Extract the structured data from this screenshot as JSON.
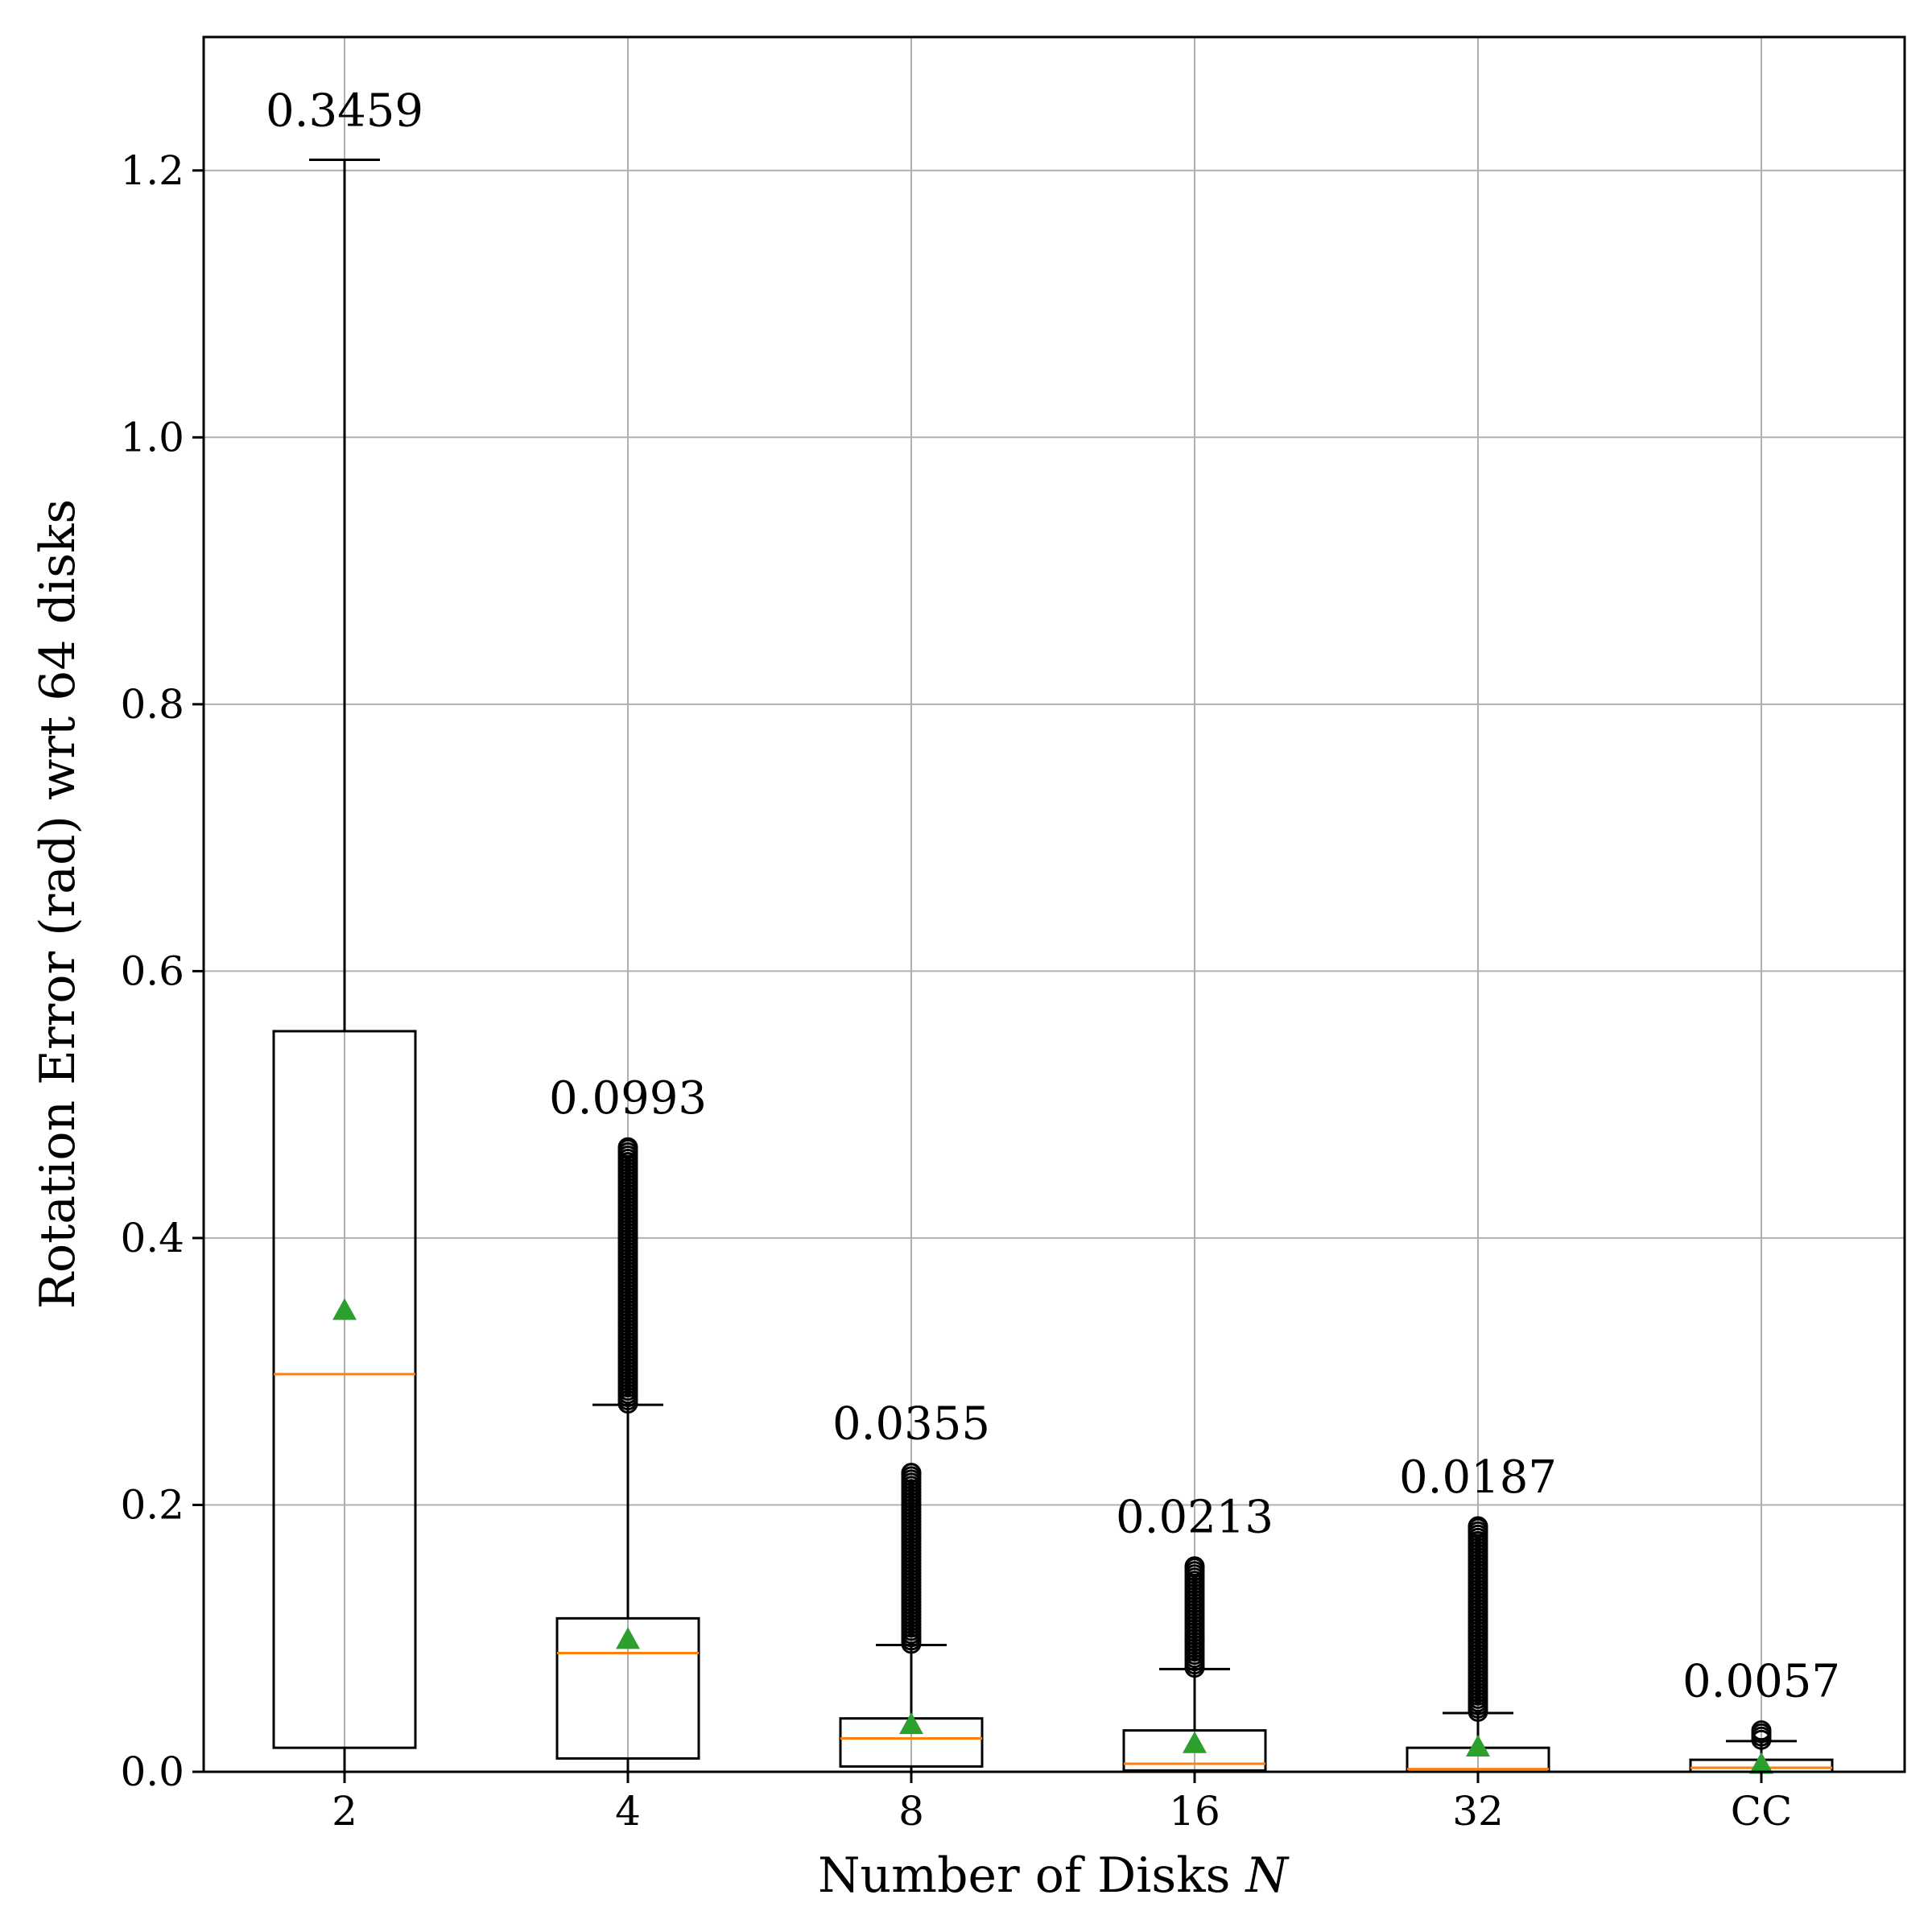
{
  "chart_data": {
    "type": "box",
    "xlabel": "Number of Disks",
    "xlabel_var": "N",
    "ylabel": "Rotation Error (rad) wrt 64 disks",
    "ylim": [
      0.0,
      1.3
    ],
    "yticks": [
      "0.0",
      "0.2",
      "0.4",
      "0.6",
      "0.8",
      "1.0",
      "1.2"
    ],
    "ytick_values": [
      0.0,
      0.2,
      0.4,
      0.6,
      0.8,
      1.0,
      1.2
    ],
    "grid": true,
    "categories": [
      "2",
      "4",
      "8",
      "16",
      "32",
      "CC"
    ],
    "boxes": [
      {
        "label": "2",
        "whisker_low": 0.0,
        "q1": 0.018,
        "median": 0.298,
        "q3": 0.555,
        "whisker_high": 1.208,
        "mean": 0.3459,
        "mean_label": "0.3459",
        "outliers_min": null,
        "outliers_max": null
      },
      {
        "label": "4",
        "whisker_low": 0.0,
        "q1": 0.01,
        "median": 0.089,
        "q3": 0.115,
        "whisker_high": 0.275,
        "mean": 0.0993,
        "mean_label": "0.0993",
        "outliers_min": 0.276,
        "outliers_max": 0.468
      },
      {
        "label": "8",
        "whisker_low": 0.0,
        "q1": 0.004,
        "median": 0.025,
        "q3": 0.04,
        "whisker_high": 0.095,
        "mean": 0.0355,
        "mean_label": "0.0355",
        "outliers_min": 0.096,
        "outliers_max": 0.224
      },
      {
        "label": "16",
        "whisker_low": 0.0,
        "q1": 0.001,
        "median": 0.006,
        "q3": 0.031,
        "whisker_high": 0.077,
        "mean": 0.0213,
        "mean_label": "0.0213",
        "outliers_min": 0.078,
        "outliers_max": 0.154
      },
      {
        "label": "32",
        "whisker_low": 0.0,
        "q1": 0.0,
        "median": 0.002,
        "q3": 0.018,
        "whisker_high": 0.044,
        "mean": 0.0187,
        "mean_label": "0.0187",
        "outliers_min": 0.045,
        "outliers_max": 0.184
      },
      {
        "label": "CC",
        "whisker_low": 0.0,
        "q1": 0.0,
        "median": 0.003,
        "q3": 0.009,
        "whisker_high": 0.023,
        "mean": 0.0057,
        "mean_label": "0.0057",
        "outliers_min": 0.024,
        "outliers_max": 0.031
      }
    ],
    "colors": {
      "median": "#ff7f0e",
      "mean_marker": "#2ca02c",
      "box": "#000000",
      "grid": "#b0b0b0"
    }
  }
}
